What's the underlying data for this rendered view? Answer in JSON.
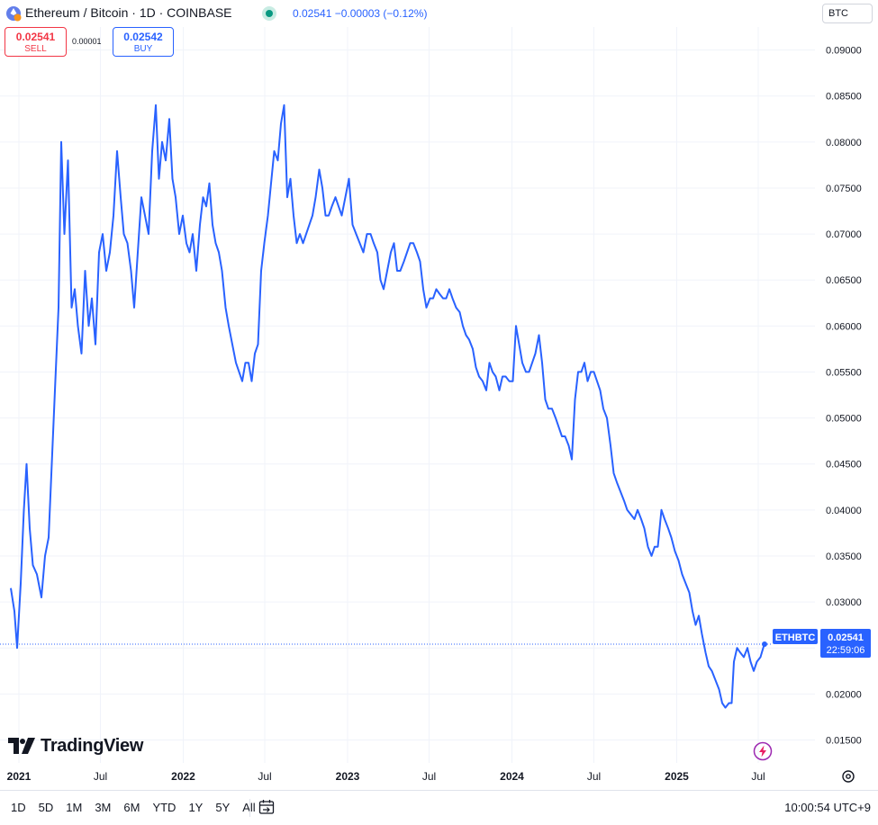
{
  "header": {
    "symbol_title": "Ethereum / Bitcoin · 1D · COINBASE",
    "quote": "0.02541  −0.00003 (−0.12%)",
    "currency": "BTC"
  },
  "trade": {
    "sell_price": "0.02541",
    "sell_label": "SELL",
    "spread": "0.00001",
    "buy_price": "0.02542",
    "buy_label": "BUY"
  },
  "branding": {
    "logo_text": "TradingView"
  },
  "bottom_bar": {
    "ranges": [
      "1D",
      "5D",
      "1M",
      "3M",
      "6M",
      "YTD",
      "1Y",
      "5Y",
      "All"
    ],
    "clock": "10:00:54 UTC+9"
  },
  "colors": {
    "line": "#2962ff",
    "grid": "#f0f3fa",
    "sell": "#f23645",
    "buy": "#2962ff",
    "live": "#089981"
  },
  "chart_data": {
    "type": "line",
    "series_label": "ETHBTC",
    "last_value": "0.02541",
    "countdown": "22:59:06",
    "ylim": [
      0.0125,
      0.0925
    ],
    "y_ticks": [
      "0.01500",
      "0.02000",
      "0.02500",
      "0.03000",
      "0.03500",
      "0.04000",
      "0.04500",
      "0.05000",
      "0.05500",
      "0.06000",
      "0.06500",
      "0.07000",
      "0.07500",
      "0.08000",
      "0.08500",
      "0.09000"
    ],
    "x_ticks": [
      {
        "label": "2021",
        "date": "2021-01-01"
      },
      {
        "label": "Jul",
        "date": "2021-07-01"
      },
      {
        "label": "2022",
        "date": "2022-01-01"
      },
      {
        "label": "Jul",
        "date": "2022-07-01"
      },
      {
        "label": "2023",
        "date": "2023-01-01"
      },
      {
        "label": "Jul",
        "date": "2023-07-01"
      },
      {
        "label": "2024",
        "date": "2024-01-01"
      },
      {
        "label": "Jul",
        "date": "2024-07-01"
      },
      {
        "label": "2025",
        "date": "2025-01-01"
      },
      {
        "label": "Jul",
        "date": "2025-07-01"
      }
    ],
    "points": [
      [
        "2020-12-14",
        0.0315
      ],
      [
        "2020-12-22",
        0.029
      ],
      [
        "2020-12-28",
        0.025
      ],
      [
        "2021-01-05",
        0.032
      ],
      [
        "2021-01-12",
        0.04
      ],
      [
        "2021-01-18",
        0.045
      ],
      [
        "2021-01-25",
        0.038
      ],
      [
        "2021-02-01",
        0.034
      ],
      [
        "2021-02-10",
        0.033
      ],
      [
        "2021-02-20",
        0.0305
      ],
      [
        "2021-02-28",
        0.035
      ],
      [
        "2021-03-08",
        0.037
      ],
      [
        "2021-03-15",
        0.045
      ],
      [
        "2021-03-22",
        0.053
      ],
      [
        "2021-03-30",
        0.062
      ],
      [
        "2021-04-05",
        0.08
      ],
      [
        "2021-04-12",
        0.07
      ],
      [
        "2021-04-20",
        0.078
      ],
      [
        "2021-04-28",
        0.062
      ],
      [
        "2021-05-05",
        0.064
      ],
      [
        "2021-05-12",
        0.06
      ],
      [
        "2021-05-20",
        0.057
      ],
      [
        "2021-05-28",
        0.066
      ],
      [
        "2021-06-05",
        0.06
      ],
      [
        "2021-06-12",
        0.063
      ],
      [
        "2021-06-20",
        0.058
      ],
      [
        "2021-06-28",
        0.068
      ],
      [
        "2021-07-06",
        0.07
      ],
      [
        "2021-07-14",
        0.066
      ],
      [
        "2021-07-22",
        0.068
      ],
      [
        "2021-07-30",
        0.072
      ],
      [
        "2021-08-07",
        0.079
      ],
      [
        "2021-08-15",
        0.074
      ],
      [
        "2021-08-22",
        0.07
      ],
      [
        "2021-08-30",
        0.069
      ],
      [
        "2021-09-07",
        0.066
      ],
      [
        "2021-09-14",
        0.062
      ],
      [
        "2021-09-22",
        0.068
      ],
      [
        "2021-09-30",
        0.074
      ],
      [
        "2021-10-08",
        0.072
      ],
      [
        "2021-10-16",
        0.07
      ],
      [
        "2021-10-24",
        0.079
      ],
      [
        "2021-11-01",
        0.084
      ],
      [
        "2021-11-08",
        0.076
      ],
      [
        "2021-11-15",
        0.08
      ],
      [
        "2021-11-23",
        0.078
      ],
      [
        "2021-12-01",
        0.0825
      ],
      [
        "2021-12-08",
        0.076
      ],
      [
        "2021-12-15",
        0.074
      ],
      [
        "2021-12-23",
        0.07
      ],
      [
        "2021-12-31",
        0.072
      ],
      [
        "2022-01-08",
        0.069
      ],
      [
        "2022-01-15",
        0.068
      ],
      [
        "2022-01-22",
        0.07
      ],
      [
        "2022-01-30",
        0.066
      ],
      [
        "2022-02-07",
        0.071
      ],
      [
        "2022-02-14",
        0.074
      ],
      [
        "2022-02-21",
        0.073
      ],
      [
        "2022-02-28",
        0.0755
      ],
      [
        "2022-03-07",
        0.071
      ],
      [
        "2022-03-14",
        0.069
      ],
      [
        "2022-03-21",
        0.068
      ],
      [
        "2022-03-28",
        0.066
      ],
      [
        "2022-04-05",
        0.062
      ],
      [
        "2022-04-12",
        0.06
      ],
      [
        "2022-04-20",
        0.058
      ],
      [
        "2022-04-28",
        0.056
      ],
      [
        "2022-05-05",
        0.055
      ],
      [
        "2022-05-12",
        0.054
      ],
      [
        "2022-05-19",
        0.056
      ],
      [
        "2022-05-26",
        0.056
      ],
      [
        "2022-06-02",
        0.054
      ],
      [
        "2022-06-09",
        0.057
      ],
      [
        "2022-06-16",
        0.058
      ],
      [
        "2022-06-23",
        0.066
      ],
      [
        "2022-06-30",
        0.069
      ],
      [
        "2022-07-08",
        0.072
      ],
      [
        "2022-07-16",
        0.076
      ],
      [
        "2022-07-22",
        0.079
      ],
      [
        "2022-07-30",
        0.078
      ],
      [
        "2022-08-06",
        0.082
      ],
      [
        "2022-08-13",
        0.084
      ],
      [
        "2022-08-20",
        0.074
      ],
      [
        "2022-08-27",
        0.076
      ],
      [
        "2022-09-03",
        0.072
      ],
      [
        "2022-09-10",
        0.069
      ],
      [
        "2022-09-17",
        0.07
      ],
      [
        "2022-09-24",
        0.069
      ],
      [
        "2022-10-01",
        0.07
      ],
      [
        "2022-10-08",
        0.071
      ],
      [
        "2022-10-15",
        0.072
      ],
      [
        "2022-10-22",
        0.074
      ],
      [
        "2022-10-30",
        0.077
      ],
      [
        "2022-11-06",
        0.075
      ],
      [
        "2022-11-13",
        0.072
      ],
      [
        "2022-11-20",
        0.072
      ],
      [
        "2022-11-27",
        0.073
      ],
      [
        "2022-12-05",
        0.074
      ],
      [
        "2022-12-12",
        0.073
      ],
      [
        "2022-12-19",
        0.072
      ],
      [
        "2022-12-27",
        0.074
      ],
      [
        "2023-01-04",
        0.076
      ],
      [
        "2023-01-12",
        0.071
      ],
      [
        "2023-01-20",
        0.07
      ],
      [
        "2023-01-28",
        0.069
      ],
      [
        "2023-02-05",
        0.068
      ],
      [
        "2023-02-13",
        0.07
      ],
      [
        "2023-02-21",
        0.07
      ],
      [
        "2023-02-28",
        0.069
      ],
      [
        "2023-03-08",
        0.068
      ],
      [
        "2023-03-15",
        0.065
      ],
      [
        "2023-03-22",
        0.064
      ],
      [
        "2023-03-30",
        0.066
      ],
      [
        "2023-04-07",
        0.068
      ],
      [
        "2023-04-14",
        0.069
      ],
      [
        "2023-04-21",
        0.066
      ],
      [
        "2023-04-28",
        0.066
      ],
      [
        "2023-05-06",
        0.067
      ],
      [
        "2023-05-13",
        0.068
      ],
      [
        "2023-05-20",
        0.069
      ],
      [
        "2023-05-27",
        0.069
      ],
      [
        "2023-06-04",
        0.068
      ],
      [
        "2023-06-11",
        0.067
      ],
      [
        "2023-06-18",
        0.064
      ],
      [
        "2023-06-25",
        0.062
      ],
      [
        "2023-07-03",
        0.063
      ],
      [
        "2023-07-10",
        0.063
      ],
      [
        "2023-07-17",
        0.064
      ],
      [
        "2023-07-24",
        0.0635
      ],
      [
        "2023-08-01",
        0.063
      ],
      [
        "2023-08-08",
        0.063
      ],
      [
        "2023-08-15",
        0.064
      ],
      [
        "2023-08-22",
        0.063
      ],
      [
        "2023-08-30",
        0.062
      ],
      [
        "2023-09-07",
        0.0615
      ],
      [
        "2023-09-14",
        0.06
      ],
      [
        "2023-09-21",
        0.059
      ],
      [
        "2023-09-28",
        0.0585
      ],
      [
        "2023-10-06",
        0.0575
      ],
      [
        "2023-10-13",
        0.0555
      ],
      [
        "2023-10-20",
        0.0545
      ],
      [
        "2023-10-28",
        0.054
      ],
      [
        "2023-11-05",
        0.053
      ],
      [
        "2023-11-12",
        0.056
      ],
      [
        "2023-11-19",
        0.055
      ],
      [
        "2023-11-26",
        0.0545
      ],
      [
        "2023-12-04",
        0.053
      ],
      [
        "2023-12-11",
        0.0545
      ],
      [
        "2023-12-18",
        0.0545
      ],
      [
        "2023-12-26",
        0.054
      ],
      [
        "2024-01-03",
        0.054
      ],
      [
        "2024-01-10",
        0.06
      ],
      [
        "2024-01-17",
        0.058
      ],
      [
        "2024-01-24",
        0.056
      ],
      [
        "2024-02-01",
        0.055
      ],
      [
        "2024-02-08",
        0.055
      ],
      [
        "2024-02-15",
        0.056
      ],
      [
        "2024-02-22",
        0.057
      ],
      [
        "2024-03-01",
        0.059
      ],
      [
        "2024-03-08",
        0.056
      ],
      [
        "2024-03-15",
        0.052
      ],
      [
        "2024-03-22",
        0.051
      ],
      [
        "2024-03-30",
        0.051
      ],
      [
        "2024-04-07",
        0.05
      ],
      [
        "2024-04-14",
        0.049
      ],
      [
        "2024-04-21",
        0.048
      ],
      [
        "2024-04-28",
        0.048
      ],
      [
        "2024-05-06",
        0.047
      ],
      [
        "2024-05-13",
        0.0455
      ],
      [
        "2024-05-20",
        0.052
      ],
      [
        "2024-05-27",
        0.055
      ],
      [
        "2024-06-03",
        0.055
      ],
      [
        "2024-06-10",
        0.056
      ],
      [
        "2024-06-17",
        0.054
      ],
      [
        "2024-06-24",
        0.055
      ],
      [
        "2024-07-01",
        0.055
      ],
      [
        "2024-07-08",
        0.054
      ],
      [
        "2024-07-15",
        0.053
      ],
      [
        "2024-07-22",
        0.051
      ],
      [
        "2024-07-30",
        0.05
      ],
      [
        "2024-08-07",
        0.047
      ],
      [
        "2024-08-14",
        0.044
      ],
      [
        "2024-08-21",
        0.043
      ],
      [
        "2024-08-29",
        0.042
      ],
      [
        "2024-09-06",
        0.041
      ],
      [
        "2024-09-13",
        0.04
      ],
      [
        "2024-09-21",
        0.0395
      ],
      [
        "2024-09-29",
        0.039
      ],
      [
        "2024-10-06",
        0.04
      ],
      [
        "2024-10-14",
        0.039
      ],
      [
        "2024-10-21",
        0.038
      ],
      [
        "2024-10-29",
        0.036
      ],
      [
        "2024-11-06",
        0.035
      ],
      [
        "2024-11-13",
        0.036
      ],
      [
        "2024-11-20",
        0.036
      ],
      [
        "2024-11-28",
        0.04
      ],
      [
        "2024-12-05",
        0.039
      ],
      [
        "2024-12-13",
        0.038
      ],
      [
        "2024-12-20",
        0.037
      ],
      [
        "2024-12-28",
        0.0355
      ],
      [
        "2025-01-05",
        0.0345
      ],
      [
        "2025-01-13",
        0.033
      ],
      [
        "2025-01-21",
        0.032
      ],
      [
        "2025-01-29",
        0.031
      ],
      [
        "2025-02-05",
        0.029
      ],
      [
        "2025-02-12",
        0.0275
      ],
      [
        "2025-02-19",
        0.0285
      ],
      [
        "2025-02-26",
        0.0265
      ],
      [
        "2025-03-06",
        0.0245
      ],
      [
        "2025-03-13",
        0.023
      ],
      [
        "2025-03-20",
        0.0225
      ],
      [
        "2025-03-28",
        0.0215
      ],
      [
        "2025-04-05",
        0.0205
      ],
      [
        "2025-04-12",
        0.019
      ],
      [
        "2025-04-19",
        0.0185
      ],
      [
        "2025-04-27",
        0.019
      ],
      [
        "2025-05-03",
        0.019
      ],
      [
        "2025-05-08",
        0.0235
      ],
      [
        "2025-05-15",
        0.025
      ],
      [
        "2025-05-22",
        0.0245
      ],
      [
        "2025-05-30",
        0.024
      ],
      [
        "2025-06-07",
        0.025
      ],
      [
        "2025-06-14",
        0.0235
      ],
      [
        "2025-06-21",
        0.0225
      ],
      [
        "2025-06-28",
        0.0235
      ],
      [
        "2025-07-06",
        0.024
      ],
      [
        "2025-07-12",
        0.025
      ],
      [
        "2025-07-15",
        0.02541
      ]
    ]
  }
}
